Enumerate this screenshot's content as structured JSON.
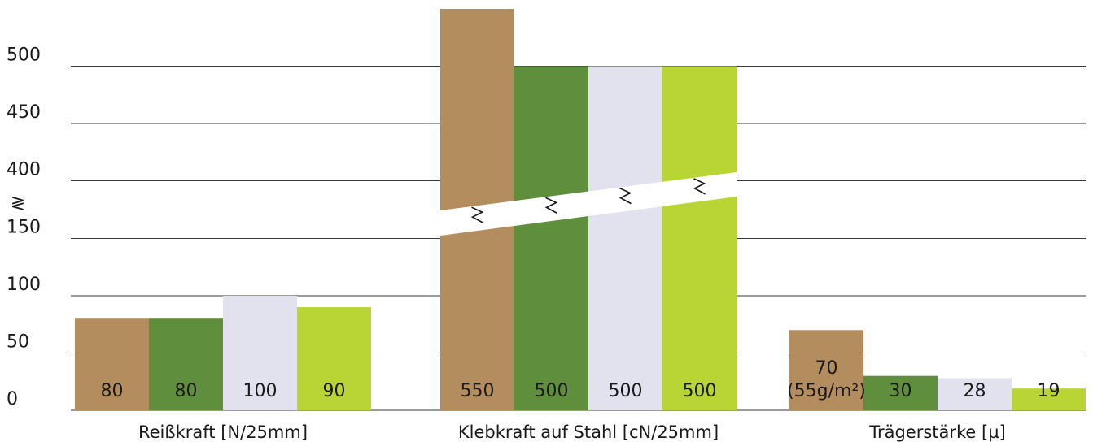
{
  "chart_data": {
    "type": "bar",
    "title": "",
    "xlabel": "",
    "ylabel": "",
    "ylim": [
      0,
      550
    ],
    "grid": true,
    "axis_break": true,
    "axis_break_symbol": "≷",
    "y_tick_labels": [
      "0",
      "50",
      "100",
      "150",
      "400",
      "450",
      "500"
    ],
    "categories": [
      "Reißkraft [N/25mm]",
      "Klebkraft auf Stahl [cN/25mm]",
      "Trägerstärke [µ]"
    ],
    "series_colors": [
      "#b48d5e",
      "#5f8e3d",
      "#e1e2ee",
      "#b9d535"
    ],
    "series": [
      {
        "values": [
          80,
          550,
          70
        ],
        "labels": [
          "80",
          "550",
          "70"
        ],
        "sublabels": [
          "",
          "",
          "(55g/m²)"
        ]
      },
      {
        "values": [
          80,
          500,
          30
        ],
        "labels": [
          "80",
          "500",
          "30"
        ],
        "sublabels": [
          "",
          "",
          ""
        ]
      },
      {
        "values": [
          100,
          500,
          28
        ],
        "labels": [
          "100",
          "500",
          "28"
        ],
        "sublabels": [
          "",
          "",
          ""
        ]
      },
      {
        "values": [
          90,
          500,
          19
        ],
        "labels": [
          "90",
          "500",
          "19"
        ],
        "sublabels": [
          "",
          "",
          ""
        ]
      }
    ]
  }
}
